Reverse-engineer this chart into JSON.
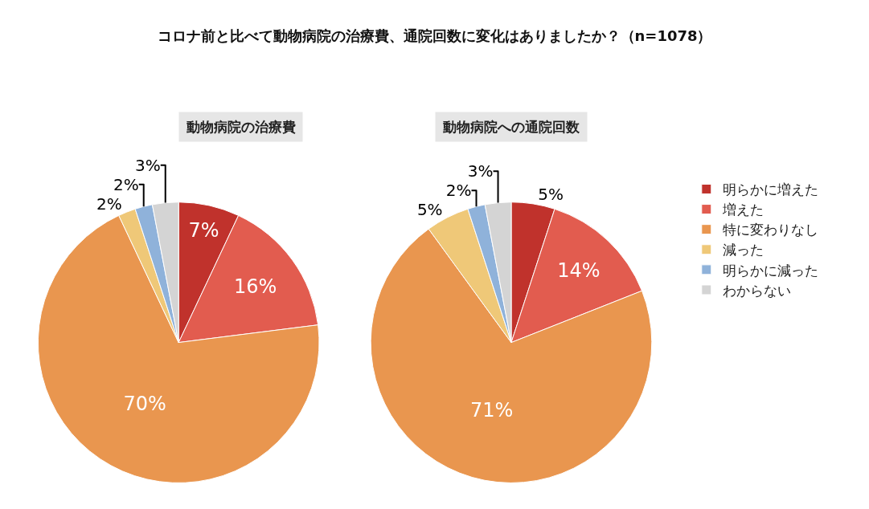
{
  "chart_data": [
    {
      "type": "pie",
      "title": "コロナ前と比べて動物病院の治療費、通院回数に変化はありましたか？（n=1078）",
      "subtitle": "動物病院の治療費",
      "categories": [
        "明らかに増えた",
        "増えた",
        "特に変わりなし",
        "減った",
        "明らかに減った",
        "わからない"
      ],
      "values": [
        7,
        16,
        70,
        2,
        2,
        3
      ],
      "value_labels": [
        "7%",
        "16%",
        "70%",
        "2%",
        "2%",
        "3%"
      ],
      "colors": [
        "#c0322c",
        "#e25c4f",
        "#e9964f",
        "#efc878",
        "#8fb2da",
        "#d4d4d4"
      ],
      "legend": "right"
    },
    {
      "type": "pie",
      "subtitle": "動物病院への通院回数",
      "values": [
        5,
        14,
        71,
        5,
        2,
        3
      ],
      "value_labels": [
        "5%",
        "14%",
        "71%",
        "5%",
        "2%",
        "3%"
      ],
      "colors": [
        "#c0322c",
        "#e25c4f",
        "#e9964f",
        "#efc878",
        "#8fb2da",
        "#d4d4d4"
      ],
      "legend": false
    }
  ]
}
